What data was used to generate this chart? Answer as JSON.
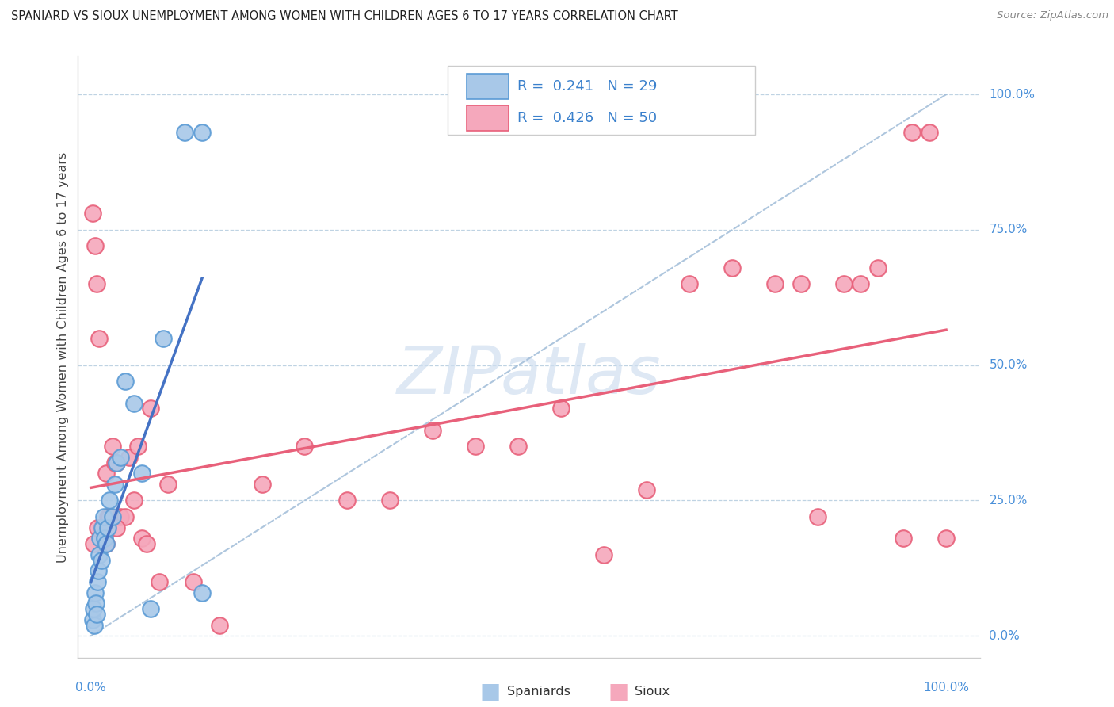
{
  "title": "SPANIARD VS SIOUX UNEMPLOYMENT AMONG WOMEN WITH CHILDREN AGES 6 TO 17 YEARS CORRELATION CHART",
  "source": "Source: ZipAtlas.com",
  "ylabel": "Unemployment Among Women with Children Ages 6 to 17 years",
  "ytick_labels": [
    "0.0%",
    "25.0%",
    "50.0%",
    "75.0%",
    "100.0%"
  ],
  "ytick_values": [
    0.0,
    0.25,
    0.5,
    0.75,
    1.0
  ],
  "legend_labels": [
    "Spaniards",
    "Sioux"
  ],
  "spaniards_R": "0.241",
  "spaniards_N": "29",
  "sioux_R": "0.426",
  "sioux_N": "50",
  "spaniards_color": "#a8c8e8",
  "sioux_color": "#f5a8bc",
  "spaniards_edge_color": "#5b9bd5",
  "sioux_edge_color": "#e8607a",
  "spaniards_line_color": "#4472c4",
  "sioux_line_color": "#e8607a",
  "dashed_line_color": "#a0bcd8",
  "watermark_color": "#d0dff0",
  "background_color": "#ffffff",
  "spaniards_x": [
    0.002,
    0.003,
    0.004,
    0.005,
    0.006,
    0.007,
    0.008,
    0.009,
    0.01,
    0.011,
    0.012,
    0.013,
    0.015,
    0.016,
    0.018,
    0.02,
    0.022,
    0.025,
    0.028,
    0.03,
    0.035,
    0.04,
    0.05,
    0.06,
    0.07,
    0.085,
    0.11,
    0.13,
    0.13
  ],
  "spaniards_y": [
    0.03,
    0.05,
    0.02,
    0.08,
    0.06,
    0.04,
    0.1,
    0.12,
    0.15,
    0.18,
    0.14,
    0.2,
    0.22,
    0.18,
    0.17,
    0.2,
    0.25,
    0.22,
    0.28,
    0.32,
    0.33,
    0.47,
    0.43,
    0.3,
    0.05,
    0.55,
    0.93,
    0.93,
    0.08
  ],
  "sioux_x": [
    0.002,
    0.005,
    0.007,
    0.01,
    0.012,
    0.015,
    0.018,
    0.02,
    0.022,
    0.025,
    0.028,
    0.03,
    0.035,
    0.04,
    0.045,
    0.05,
    0.055,
    0.06,
    0.065,
    0.07,
    0.08,
    0.09,
    0.12,
    0.15,
    0.2,
    0.25,
    0.3,
    0.35,
    0.4,
    0.45,
    0.5,
    0.55,
    0.6,
    0.65,
    0.7,
    0.75,
    0.8,
    0.83,
    0.85,
    0.88,
    0.9,
    0.92,
    0.95,
    0.96,
    0.98,
    1.0,
    0.003,
    0.008,
    0.018,
    0.03
  ],
  "sioux_y": [
    0.78,
    0.72,
    0.65,
    0.55,
    0.2,
    0.2,
    0.3,
    0.22,
    0.22,
    0.35,
    0.32,
    0.32,
    0.22,
    0.22,
    0.33,
    0.25,
    0.35,
    0.18,
    0.17,
    0.42,
    0.1,
    0.28,
    0.1,
    0.02,
    0.28,
    0.35,
    0.25,
    0.25,
    0.38,
    0.35,
    0.35,
    0.42,
    0.15,
    0.27,
    0.65,
    0.68,
    0.65,
    0.65,
    0.22,
    0.65,
    0.65,
    0.68,
    0.18,
    0.93,
    0.93,
    0.18,
    0.17,
    0.2,
    0.17,
    0.2
  ]
}
